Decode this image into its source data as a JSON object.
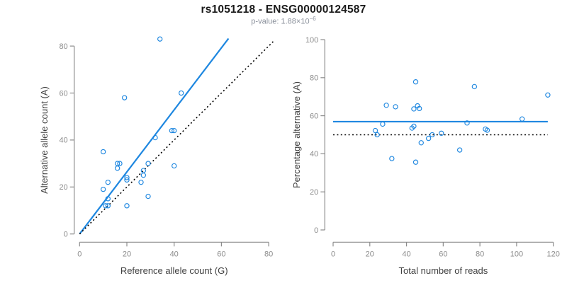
{
  "header": {
    "title": "rs1051218 - ENSG00000124587",
    "subtitle_prefix": "p-value: 1.88×10",
    "subtitle_exponent": "−6"
  },
  "colors": {
    "point_blue": "#1E87E0",
    "line_blue": "#1E87E0",
    "dotted_line": "#000000",
    "axis_gray": "#8C8C8C",
    "tick_label_gray": "#8C8C8C",
    "axis_title_dark": "#404040"
  },
  "chart_data": [
    {
      "type": "scatter",
      "panel": "left",
      "xlabel": "Reference allele count (G)",
      "ylabel": "Alternative allele count (A)",
      "xlim": [
        0,
        80
      ],
      "ylim": [
        0,
        80
      ],
      "xticks": [
        0,
        20,
        40,
        60,
        80
      ],
      "yticks": [
        0,
        20,
        40,
        60,
        80
      ],
      "grid": false,
      "points": [
        [
          34,
          83
        ],
        [
          19,
          58
        ],
        [
          43,
          60
        ],
        [
          39,
          44
        ],
        [
          40,
          44
        ],
        [
          32,
          41
        ],
        [
          10,
          35
        ],
        [
          16,
          30
        ],
        [
          17,
          30
        ],
        [
          16,
          28
        ],
        [
          29,
          30
        ],
        [
          27,
          27
        ],
        [
          27,
          25
        ],
        [
          26,
          22
        ],
        [
          20,
          24
        ],
        [
          20,
          23
        ],
        [
          12,
          22
        ],
        [
          10,
          19
        ],
        [
          29,
          16
        ],
        [
          12,
          15
        ],
        [
          11,
          12
        ],
        [
          12,
          12
        ],
        [
          20,
          12
        ],
        [
          40,
          29
        ]
      ],
      "lines": [
        {
          "name": "regression-line",
          "style": "solid",
          "color": "#1E87E0",
          "slope": 1.32,
          "from": [
            0,
            0
          ],
          "to": [
            63,
            83.2
          ]
        },
        {
          "name": "identity-line",
          "style": "dotted",
          "color": "#000000",
          "slope": 1.0,
          "from": [
            0,
            0
          ],
          "to": [
            82.5,
            82.5
          ]
        }
      ]
    },
    {
      "type": "scatter",
      "panel": "right",
      "xlabel": "Total number of reads",
      "ylabel": "Percentage alternative (A)",
      "xlim": [
        0,
        120
      ],
      "ylim": [
        0,
        100
      ],
      "xticks": [
        0,
        20,
        40,
        60,
        80,
        100,
        120
      ],
      "yticks": [
        0,
        20,
        40,
        60,
        80,
        100
      ],
      "grid": false,
      "points": [
        [
          117,
          70.9
        ],
        [
          77,
          75.3
        ],
        [
          103,
          58.3
        ],
        [
          83,
          53.0
        ],
        [
          84,
          52.4
        ],
        [
          73,
          56.2
        ],
        [
          45,
          77.8
        ],
        [
          46,
          65.2
        ],
        [
          47,
          63.8
        ],
        [
          44,
          63.6
        ],
        [
          59,
          50.8
        ],
        [
          54,
          50.0
        ],
        [
          52,
          48.1
        ],
        [
          48,
          45.8
        ],
        [
          44,
          54.5
        ],
        [
          43,
          53.5
        ],
        [
          34,
          64.7
        ],
        [
          29,
          65.5
        ],
        [
          45,
          35.6
        ],
        [
          27,
          55.6
        ],
        [
          23,
          52.2
        ],
        [
          24,
          50.0
        ],
        [
          32,
          37.5
        ],
        [
          69,
          42.0
        ]
      ],
      "lines": [
        {
          "name": "mean-percentage-line",
          "style": "solid",
          "color": "#1E87E0",
          "value": 56.9,
          "from": [
            0,
            56.9
          ],
          "to": [
            117,
            56.9
          ]
        },
        {
          "name": "fifty-percent-line",
          "style": "dotted",
          "color": "#000000",
          "value": 50,
          "from": [
            0,
            50
          ],
          "to": [
            117,
            50
          ]
        }
      ]
    }
  ]
}
